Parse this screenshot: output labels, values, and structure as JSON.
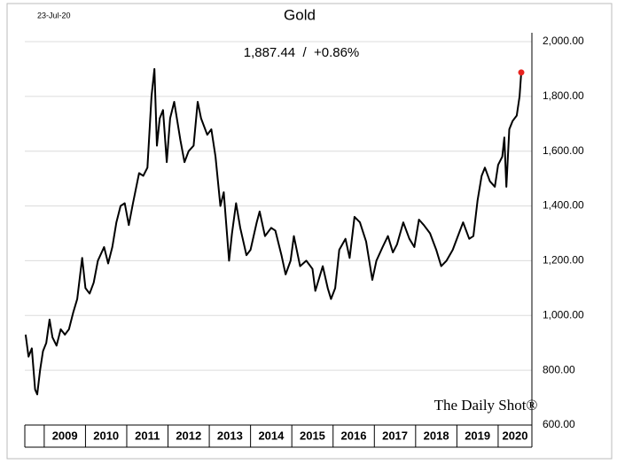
{
  "chart_data": {
    "type": "line",
    "title": "Gold",
    "subtitle": "1,887.44  /  +0.86%",
    "date": "23-Jul-20",
    "watermark": "The Daily Shot®",
    "x": [
      2008.55,
      2008.62,
      2008.7,
      2008.78,
      2008.83,
      2008.9,
      2008.97,
      2009.05,
      2009.13,
      2009.2,
      2009.3,
      2009.4,
      2009.5,
      2009.6,
      2009.7,
      2009.8,
      2009.92,
      2010.0,
      2010.1,
      2010.2,
      2010.3,
      2010.45,
      2010.55,
      2010.65,
      2010.75,
      2010.85,
      2010.95,
      2011.05,
      2011.15,
      2011.3,
      2011.4,
      2011.5,
      2011.6,
      2011.67,
      2011.73,
      2011.8,
      2011.88,
      2011.97,
      2012.05,
      2012.15,
      2012.3,
      2012.4,
      2012.5,
      2012.62,
      2012.72,
      2012.8,
      2012.95,
      2013.05,
      2013.15,
      2013.27,
      2013.35,
      2013.48,
      2013.55,
      2013.65,
      2013.75,
      2013.9,
      2014.0,
      2014.15,
      2014.22,
      2014.35,
      2014.5,
      2014.6,
      2014.75,
      2014.85,
      2014.97,
      2015.05,
      2015.2,
      2015.35,
      2015.5,
      2015.57,
      2015.75,
      2015.87,
      2015.95,
      2016.05,
      2016.15,
      2016.3,
      2016.4,
      2016.52,
      2016.65,
      2016.8,
      2016.95,
      2017.05,
      2017.2,
      2017.33,
      2017.45,
      2017.55,
      2017.7,
      2017.85,
      2017.97,
      2018.08,
      2018.2,
      2018.35,
      2018.5,
      2018.62,
      2018.75,
      2018.9,
      2019.05,
      2019.15,
      2019.3,
      2019.4,
      2019.5,
      2019.6,
      2019.68,
      2019.8,
      2019.92,
      2020.0,
      2020.1,
      2020.15,
      2020.2,
      2020.27,
      2020.35,
      2020.45,
      2020.52,
      2020.56
    ],
    "values": [
      930,
      850,
      880,
      730,
      712,
      800,
      870,
      900,
      985,
      920,
      890,
      950,
      930,
      950,
      1010,
      1060,
      1210,
      1100,
      1080,
      1120,
      1200,
      1250,
      1190,
      1250,
      1340,
      1400,
      1410,
      1330,
      1410,
      1520,
      1510,
      1540,
      1800,
      1900,
      1620,
      1720,
      1750,
      1560,
      1720,
      1780,
      1640,
      1560,
      1600,
      1620,
      1780,
      1720,
      1660,
      1680,
      1580,
      1400,
      1450,
      1200,
      1300,
      1410,
      1320,
      1220,
      1240,
      1340,
      1380,
      1290,
      1320,
      1310,
      1220,
      1150,
      1200,
      1290,
      1180,
      1200,
      1170,
      1090,
      1180,
      1100,
      1060,
      1100,
      1240,
      1280,
      1210,
      1360,
      1340,
      1270,
      1130,
      1200,
      1250,
      1290,
      1230,
      1260,
      1340,
      1280,
      1250,
      1350,
      1330,
      1300,
      1240,
      1180,
      1200,
      1240,
      1300,
      1340,
      1280,
      1290,
      1420,
      1510,
      1540,
      1490,
      1470,
      1550,
      1580,
      1650,
      1470,
      1680,
      1710,
      1730,
      1800,
      1887.44
    ],
    "color": "#000000",
    "last_point_color": "#e8231f",
    "xlim": [
      2008.53,
      2020.56
    ],
    "xticks": [
      2009,
      2010,
      2011,
      2012,
      2013,
      2014,
      2015,
      2016,
      2017,
      2018,
      2019,
      2020
    ],
    "ylim": [
      600,
      2000
    ],
    "yticks": [
      {
        "value": 600,
        "label": "600.00"
      },
      {
        "value": 800,
        "label": "800.00"
      },
      {
        "value": 1000,
        "label": "1,000.00"
      },
      {
        "value": 1200,
        "label": "1,200.00"
      },
      {
        "value": 1400,
        "label": "1,400.00"
      },
      {
        "value": 1600,
        "label": "1,600.00"
      },
      {
        "value": 1800,
        "label": "1,800.00"
      },
      {
        "value": 2000,
        "label": "2,000.00"
      }
    ],
    "grid": true
  }
}
